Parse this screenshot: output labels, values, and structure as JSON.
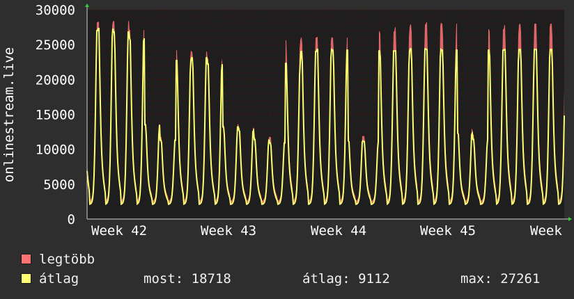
{
  "chart_data": {
    "type": "area",
    "ylabel": "onlinestream.live",
    "ylim": [
      0,
      30000
    ],
    "y_ticks": [
      0,
      5000,
      10000,
      15000,
      20000,
      25000,
      30000
    ],
    "x_ticks": [
      "Week 42",
      "Week 43",
      "Week 44",
      "Week 45",
      "Week"
    ],
    "grid": true,
    "series": [
      {
        "name": "legtöbb",
        "color": "#ff7373",
        "values": [
          28200,
          28300,
          28400,
          27100,
          13800,
          11800,
          24200,
          24000,
          23000,
          13600,
          13100,
          11700,
          11800,
          25600,
          26000,
          26100,
          26000,
          11900,
          11900,
          26900,
          27500,
          27900,
          28200,
          28000,
          12900,
          12100,
          27200,
          27800,
          28000
        ]
      },
      {
        "name": "átlag",
        "color": "#ffff73",
        "values": [
          27000,
          27300,
          26800,
          25900,
          13500,
          11300,
          22700,
          23100,
          22200,
          13200,
          12700,
          11400,
          10900,
          22300,
          24000,
          24300,
          24200,
          11200,
          11100,
          24100,
          24100,
          24400,
          24300,
          24200,
          12300,
          11400,
          24200,
          24300,
          24300
        ]
      }
    ],
    "legend_position": "bottom-left"
  },
  "legend": {
    "max_label": "legtöbb",
    "avg_label": "átlag"
  },
  "stats": {
    "current": "most: 18718",
    "average": "átlag: 9112",
    "maximum": "max: 27261"
  },
  "colors": {
    "background": "#2e2e2e",
    "plot": "#1e1e1e",
    "grid": "#990000",
    "max": "#ff7373",
    "avg": "#ffff73"
  }
}
